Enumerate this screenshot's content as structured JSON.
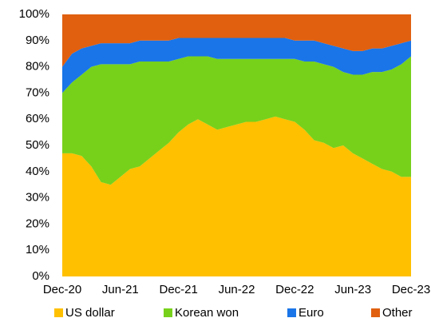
{
  "chart_data": {
    "type": "stacked_area",
    "categories": [
      "Dec-20",
      null,
      null,
      null,
      null,
      null,
      "Jun-21",
      null,
      null,
      null,
      null,
      null,
      "Dec-21",
      null,
      null,
      null,
      null,
      null,
      "Jun-22",
      null,
      null,
      null,
      null,
      null,
      "Dec-22",
      null,
      null,
      null,
      null,
      null,
      "Jun-23",
      null,
      null,
      null,
      null,
      null,
      "Dec-23"
    ],
    "series": [
      {
        "name": "US dollar",
        "color": "#ffc000",
        "values": [
          47,
          47,
          46,
          42,
          36,
          35,
          38,
          41,
          42,
          45,
          48,
          51,
          55,
          58,
          60,
          58,
          56,
          57,
          58,
          59,
          59,
          60,
          61,
          60,
          59,
          56,
          52,
          51,
          49,
          50,
          47,
          45,
          43,
          41,
          40,
          38,
          38
        ]
      },
      {
        "name": "Korean won",
        "color": "#77d11b",
        "values": [
          23,
          27,
          31,
          38,
          45,
          46,
          43,
          40,
          40,
          37,
          34,
          31,
          28,
          26,
          24,
          26,
          27,
          26,
          25,
          24,
          24,
          23,
          22,
          23,
          24,
          26,
          30,
          30,
          31,
          28,
          30,
          32,
          35,
          37,
          39,
          43,
          46
        ]
      },
      {
        "name": "Euro",
        "color": "#1a75e8",
        "values": [
          10,
          11,
          10,
          8,
          8,
          8,
          8,
          8,
          8,
          8,
          8,
          8,
          8,
          7,
          7,
          7,
          8,
          8,
          8,
          8,
          8,
          8,
          8,
          8,
          7,
          8,
          8,
          8,
          8,
          9,
          9,
          9,
          9,
          9,
          9,
          8,
          6
        ]
      },
      {
        "name": "Other",
        "color": "#e06010",
        "values": [
          20,
          15,
          13,
          12,
          11,
          11,
          11,
          11,
          10,
          10,
          10,
          10,
          9,
          9,
          9,
          9,
          9,
          9,
          9,
          9,
          9,
          9,
          9,
          9,
          10,
          10,
          10,
          11,
          12,
          13,
          14,
          14,
          13,
          13,
          12,
          11,
          10
        ]
      }
    ],
    "ylim": [
      0,
      100
    ],
    "yticks": [
      {
        "value": 0,
        "label": "0%"
      },
      {
        "value": 10,
        "label": "10%"
      },
      {
        "value": 20,
        "label": "20%"
      },
      {
        "value": 30,
        "label": "30%"
      },
      {
        "value": 40,
        "label": "40%"
      },
      {
        "value": 50,
        "label": "50%"
      },
      {
        "value": 60,
        "label": "60%"
      },
      {
        "value": 70,
        "label": "70%"
      },
      {
        "value": 80,
        "label": "80%"
      },
      {
        "value": 90,
        "label": "90%"
      },
      {
        "value": 100,
        "label": "100%"
      }
    ],
    "legend": "bottom"
  }
}
